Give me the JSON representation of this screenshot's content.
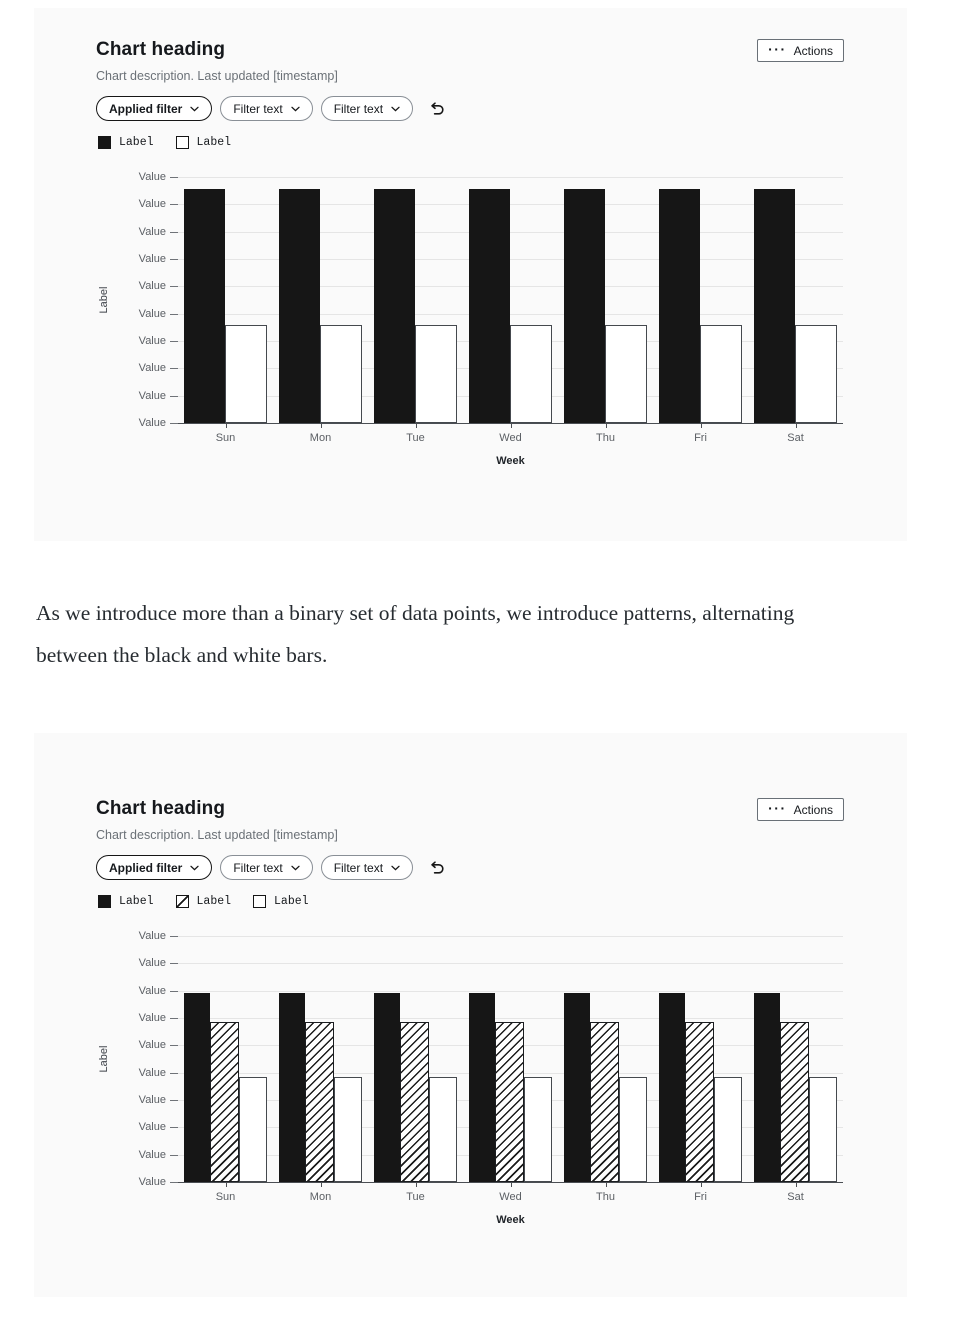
{
  "paragraph": "As we introduce more than a binary set of data points, we introduce patterns, alternating between the black and white bars.",
  "colors": {
    "page_bg": "#ffffff",
    "card_bg": "#fafafa",
    "bar_black": "#161616",
    "bar_outline_border": "#45494e",
    "grid_line": "#e5e5e5",
    "axis": "#4a4e53",
    "tick_text": "#5b5f64",
    "description_text": "#6b7177"
  },
  "icons": {
    "actions": "overflow-menu-horizontal-icon",
    "pill_chevron": "chevron-down-icon",
    "reset": "undo-reset-icon"
  },
  "cards": [
    {
      "heading": "Chart heading",
      "description": "Chart description. Last updated [timestamp]",
      "actions_label": "Actions",
      "actions_dots": "···",
      "filters": [
        {
          "label": "Applied filter",
          "applied": true
        },
        {
          "label": "Filter text",
          "applied": false
        },
        {
          "label": "Filter text",
          "applied": false
        }
      ],
      "legend": [
        {
          "label": "Label",
          "swatch": "solid"
        },
        {
          "label": "Label",
          "swatch": "outline"
        }
      ],
      "chart_data": {
        "type": "bar",
        "categories": [
          "Sun",
          "Mon",
          "Tue",
          "Wed",
          "Thu",
          "Fri",
          "Sat"
        ],
        "series": [
          {
            "name": "Label",
            "pattern": "solid",
            "values": [
              0.95,
              0.95,
              0.95,
              0.95,
              0.95,
              0.95,
              0.95
            ]
          },
          {
            "name": "Label",
            "pattern": "outline",
            "values": [
              0.4,
              0.4,
              0.4,
              0.4,
              0.4,
              0.4,
              0.4
            ]
          }
        ],
        "values_unit": "fraction of y-axis height (all tick labels are placeholder text)",
        "xlabel": "Week",
        "ylabel": "Label",
        "y_tick_labels": [
          "Value",
          "Value",
          "Value",
          "Value",
          "Value",
          "Value",
          "Value",
          "Value",
          "Value",
          "Value"
        ],
        "grid": true,
        "legend_position": "top-left"
      }
    },
    {
      "heading": "Chart heading",
      "description": "Chart description. Last updated [timestamp]",
      "actions_label": "Actions",
      "actions_dots": "···",
      "filters": [
        {
          "label": "Applied filter",
          "applied": true
        },
        {
          "label": "Filter text",
          "applied": false
        },
        {
          "label": "Filter text",
          "applied": false
        }
      ],
      "legend": [
        {
          "label": "Label",
          "swatch": "solid"
        },
        {
          "label": "Label",
          "swatch": "hatch"
        },
        {
          "label": "Label",
          "swatch": "outline"
        }
      ],
      "chart_data": {
        "type": "bar",
        "categories": [
          "Sun",
          "Mon",
          "Tue",
          "Wed",
          "Thu",
          "Fri",
          "Sat"
        ],
        "series": [
          {
            "name": "Label",
            "pattern": "solid",
            "values": [
              0.77,
              0.77,
              0.77,
              0.77,
              0.77,
              0.77,
              0.77
            ]
          },
          {
            "name": "Label",
            "pattern": "hatch",
            "values": [
              0.65,
              0.65,
              0.65,
              0.65,
              0.65,
              0.65,
              0.65
            ]
          },
          {
            "name": "Label",
            "pattern": "outline",
            "values": [
              0.425,
              0.425,
              0.425,
              0.425,
              0.425,
              0.425,
              0.425
            ]
          }
        ],
        "values_unit": "fraction of y-axis height (all tick labels are placeholder text)",
        "xlabel": "Week",
        "ylabel": "Label",
        "y_tick_labels": [
          "Value",
          "Value",
          "Value",
          "Value",
          "Value",
          "Value",
          "Value",
          "Value",
          "Value",
          "Value"
        ],
        "grid": true,
        "legend_position": "top-left"
      }
    }
  ]
}
